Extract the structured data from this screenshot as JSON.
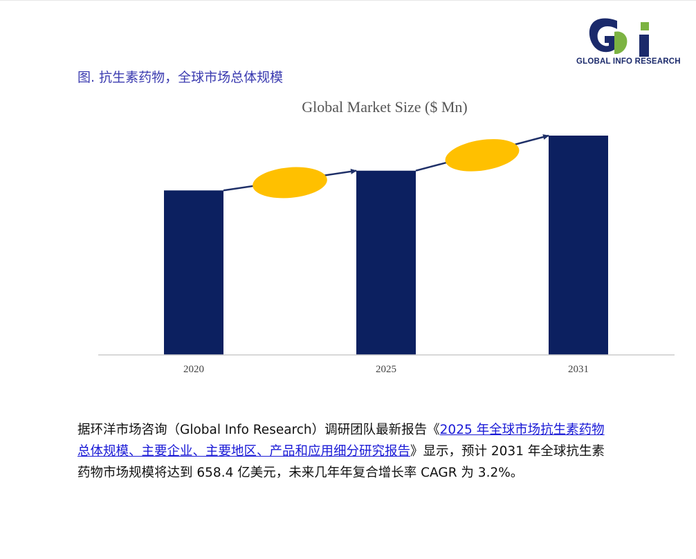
{
  "logo": {
    "mark": "Gi",
    "text": "GLOBAL INFO RESEARCH",
    "colors": {
      "navy": "#1b2a6b",
      "green": "#7cb342"
    }
  },
  "figure": {
    "caption": "图. 抗生素药物，全球市场总体规模"
  },
  "chart_data": {
    "type": "bar",
    "title": "Global Market Size ($ Mn)",
    "categories": [
      "2020",
      "2025",
      "2031"
    ],
    "relative_heights": [
      0.75,
      0.84,
      1.0
    ],
    "bar_color": "#0c2060",
    "growth_ellipse_color": "#ffc000",
    "arrow_color": "#1f3068",
    "xlabel": "",
    "ylabel": "",
    "grid": false,
    "legend": "none"
  },
  "paragraph": {
    "prefix": "据环洋市场咨询（Global Info Research）调研团队最新报告《",
    "link_text": "2025 年全球市场抗生素药物总体规模、主要企业、主要地区、产品和应用细分研究报告",
    "suffix": "》显示，预计 2031 年全球抗生素药物市场规模将达到 658.4 亿美元，未来几年年复合增长率 CAGR 为 3.2%。"
  }
}
